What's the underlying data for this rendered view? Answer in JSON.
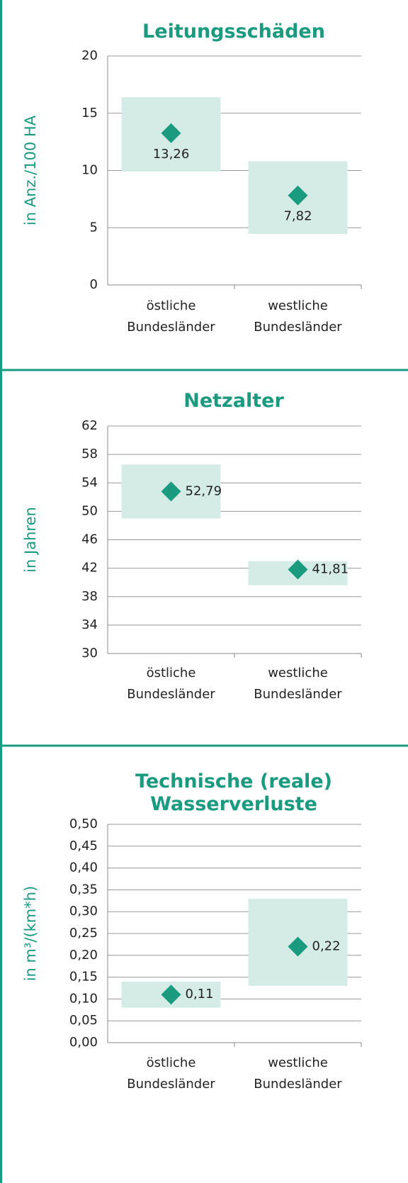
{
  "chart_data": [
    {
      "type": "range-dot",
      "title": "Leitungsschäden",
      "y_label": "in Anz./100 HA",
      "categories": [
        "östliche Bundesländer",
        "westliche Bundesländer"
      ],
      "values": [
        13.26,
        7.82
      ],
      "value_labels": [
        "13,26",
        "7,82"
      ],
      "range_low": [
        9.9,
        4.45
      ],
      "range_high": [
        16.4,
        10.8
      ],
      "color": "#1a9a7f",
      "range_color": "#d5ece6",
      "ylim": [
        0,
        20
      ],
      "yticks": [
        0,
        5,
        10,
        15,
        20
      ],
      "grid": true
    },
    {
      "type": "range-dot",
      "title": "Netzalter",
      "y_label": "in Jahren",
      "categories": [
        "östliche Bundesländer",
        "westliche Bundesländer"
      ],
      "values": [
        52.79,
        41.81
      ],
      "value_labels": [
        "52,79",
        "41,81"
      ],
      "range_low": [
        49.0,
        39.6
      ],
      "range_high": [
        56.6,
        43.0
      ],
      "color": "#1a9a7f",
      "range_color": "#d5ece6",
      "ylim": [
        30,
        62
      ],
      "yticks": [
        30,
        34,
        38,
        42,
        46,
        50,
        54,
        58,
        62
      ],
      "grid": true
    },
    {
      "type": "range-dot",
      "title": "Technische (reale) Wasserverluste",
      "y_label": "in m³/(km*h)",
      "categories": [
        "östliche Bundesländer",
        "westliche Bundesländer"
      ],
      "values": [
        0.11,
        0.22
      ],
      "value_labels": [
        "0,11",
        "0,22"
      ],
      "range_low": [
        0.08,
        0.13
      ],
      "range_high": [
        0.14,
        0.33
      ],
      "color": "#1a9a7f",
      "range_color": "#d5ece6",
      "ylim": [
        0,
        0.5
      ],
      "yticks": [
        {
          "value": 0,
          "label": "0,00"
        },
        {
          "value": 0.05,
          "label": "0,05"
        },
        {
          "value": 0.1,
          "label": "0,10"
        },
        {
          "value": 0.15,
          "label": "0,15"
        },
        {
          "value": 0.2,
          "label": "0,20"
        },
        {
          "value": 0.25,
          "label": "0,25"
        },
        {
          "value": 0.3,
          "label": "0,30"
        },
        {
          "value": 0.35,
          "label": "0,35"
        },
        {
          "value": 0.4,
          "label": "0,40"
        },
        {
          "value": 0.45,
          "label": "0,45"
        },
        {
          "value": 0.5,
          "label": "0,50"
        }
      ],
      "grid": true
    }
  ]
}
